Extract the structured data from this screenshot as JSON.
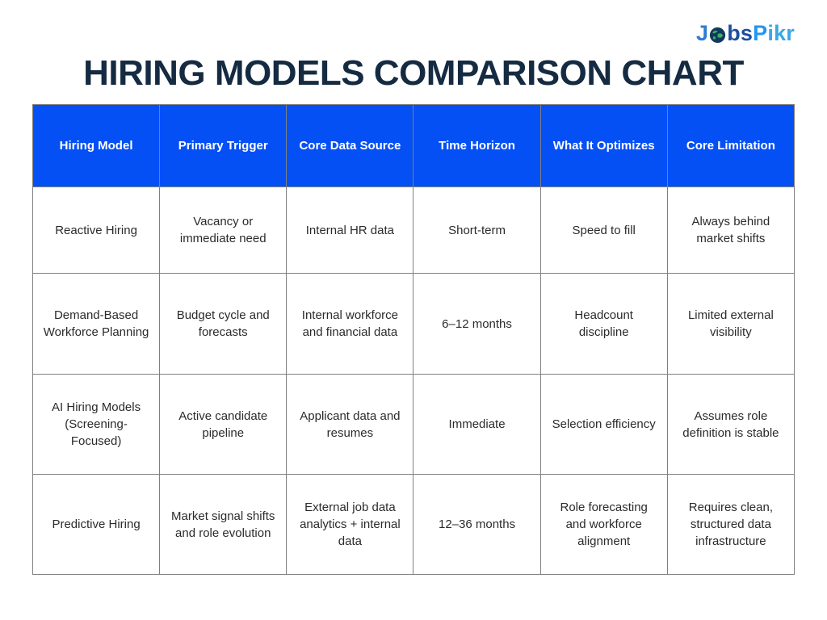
{
  "logo": {
    "j": "J",
    "bs": "bs",
    "p": "P",
    "ikr": "ikr"
  },
  "chart_data": {
    "type": "table",
    "title": "HIRING MODELS COMPARISON CHART",
    "columns": [
      "Hiring Model",
      "Primary Trigger",
      "Core Data Source",
      "Time Horizon",
      "What It Optimizes",
      "Core Limitation"
    ],
    "rows": [
      [
        "Reactive Hiring",
        "Vacancy or immediate need",
        "Internal HR data",
        "Short-term",
        "Speed to fill",
        "Always behind market shifts"
      ],
      [
        "Demand-Based Workforce Planning",
        "Budget cycle and forecasts",
        "Internal workforce and financial data",
        "6–12 months",
        "Headcount discipline",
        "Limited external visibility"
      ],
      [
        "AI Hiring Models (Screening-Focused)",
        "Active candidate pipeline",
        "Applicant data and resumes",
        "Immediate",
        "Selection efficiency",
        "Assumes role definition is stable"
      ],
      [
        "Predictive Hiring",
        "Market signal shifts and role evolution",
        "External job data analytics + internal data",
        "12–36 months",
        "Role forecasting and workforce alignment",
        "Requires clean, structured data infrastructure"
      ]
    ],
    "layout": {
      "grid": "full-borders",
      "header_row": true,
      "columns_equal_width": true
    }
  },
  "colors": {
    "header_bg": "#0550f5",
    "header_text": "#ffffff",
    "body_text": "#2b2b2b",
    "border_color": "#808080",
    "title_color": "#152b42",
    "logo_j": "#2d7dd2",
    "logo_bs": "#1c4e9e",
    "logo_p": "#2196f3",
    "logo_ikr": "#38a8e8",
    "globe_dark": "#123a5c",
    "globe_land": "#3fae6a"
  }
}
